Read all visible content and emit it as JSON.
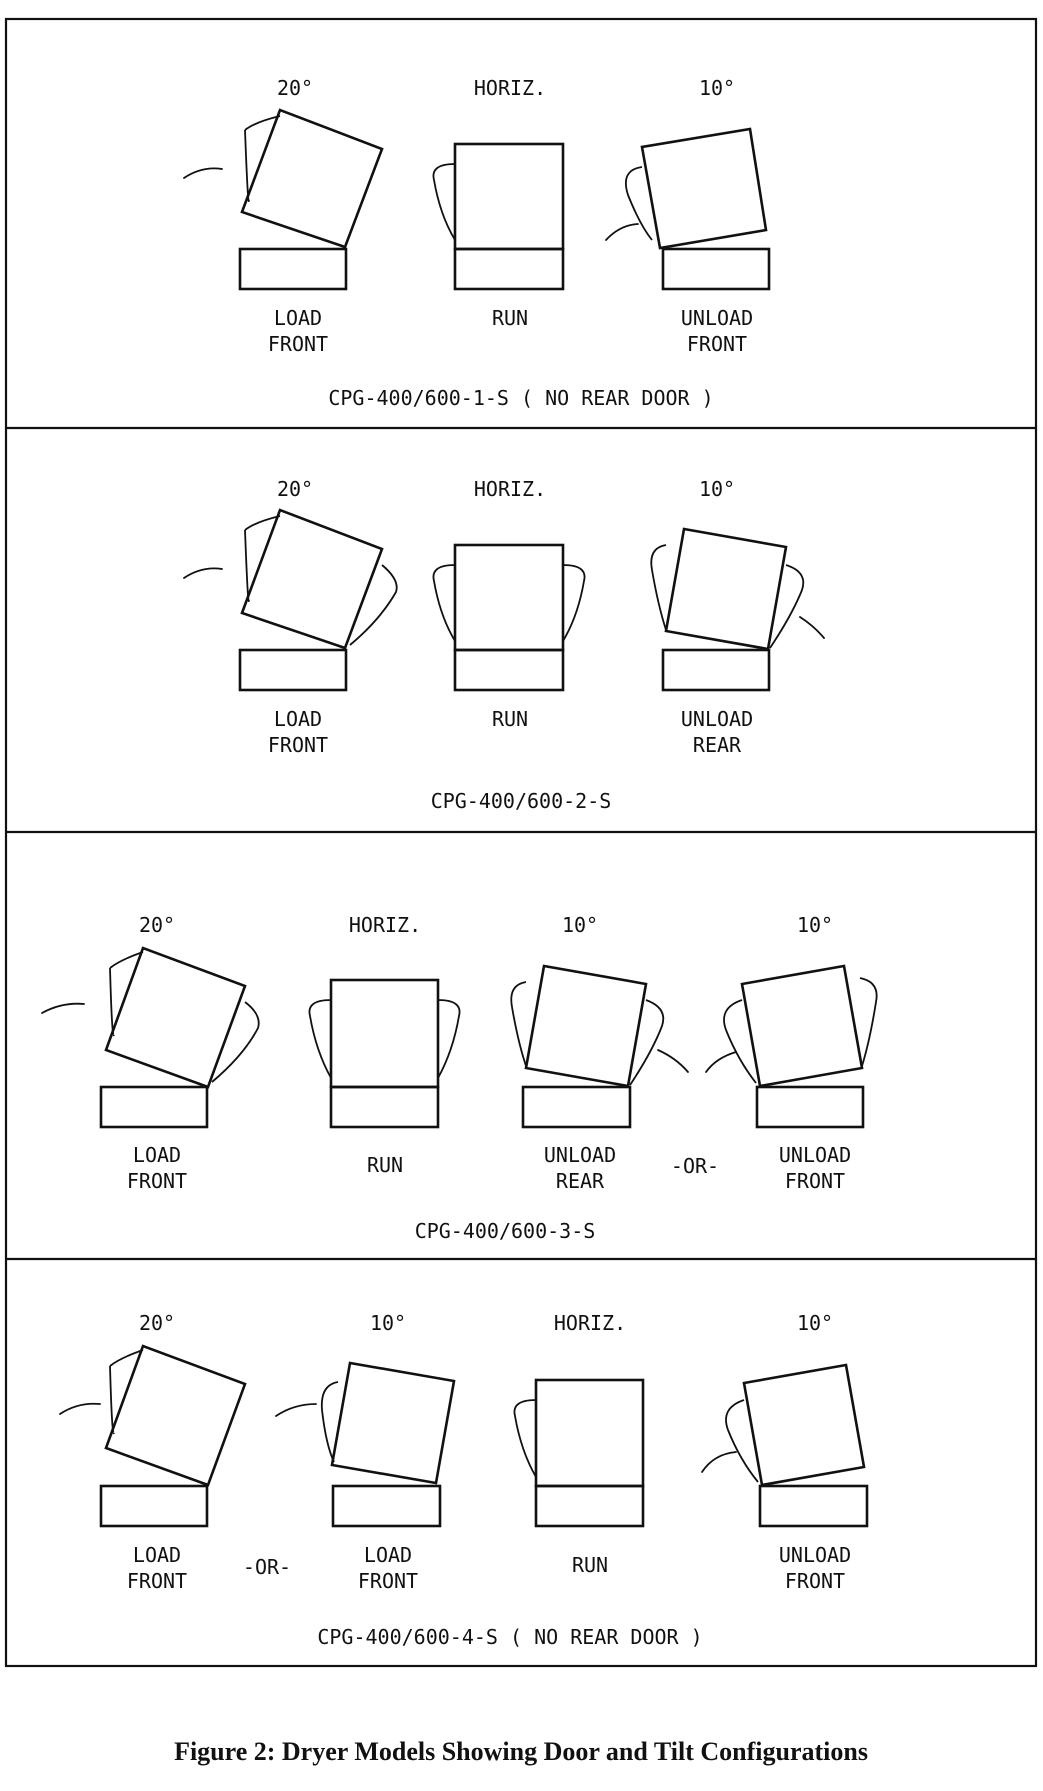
{
  "sections": [
    {
      "title": "CPG-400/600-1-S ( NO REAR DOOR )",
      "positions": [
        {
          "angle": "20°",
          "label": [
            "LOAD",
            "FRONT"
          ]
        },
        {
          "angle": "HORIZ.",
          "label": [
            "RUN"
          ]
        },
        {
          "angle": "10°",
          "label": [
            "UNLOAD",
            "FRONT"
          ]
        }
      ]
    },
    {
      "title": "CPG-400/600-2-S",
      "positions": [
        {
          "angle": "20°",
          "label": [
            "LOAD",
            "FRONT"
          ]
        },
        {
          "angle": "HORIZ.",
          "label": [
            "RUN"
          ]
        },
        {
          "angle": "10°",
          "label": [
            "UNLOAD",
            "REAR"
          ]
        }
      ]
    },
    {
      "title": "CPG-400/600-3-S",
      "positions": [
        {
          "angle": "20°",
          "label": [
            "LOAD",
            "FRONT"
          ]
        },
        {
          "angle": "HORIZ.",
          "label": [
            "RUN"
          ]
        },
        {
          "angle": "10°",
          "label": [
            "UNLOAD",
            "REAR"
          ]
        },
        {
          "angle": "10°",
          "label": [
            "UNLOAD",
            "FRONT"
          ]
        }
      ],
      "separator": "-OR-"
    },
    {
      "title": "CPG-400/600-4-S ( NO REAR DOOR )",
      "positions": [
        {
          "angle": "20°",
          "label": [
            "LOAD",
            "FRONT"
          ]
        },
        {
          "angle": "10°",
          "label": [
            "LOAD",
            "FRONT"
          ]
        },
        {
          "angle": "HORIZ.",
          "label": [
            "RUN"
          ]
        },
        {
          "angle": "10°",
          "label": [
            "UNLOAD",
            "FRONT"
          ]
        }
      ],
      "separator": "-OR-"
    }
  ],
  "figure_caption": "Figure 2:  Dryer Models Showing Door and Tilt Configurations"
}
